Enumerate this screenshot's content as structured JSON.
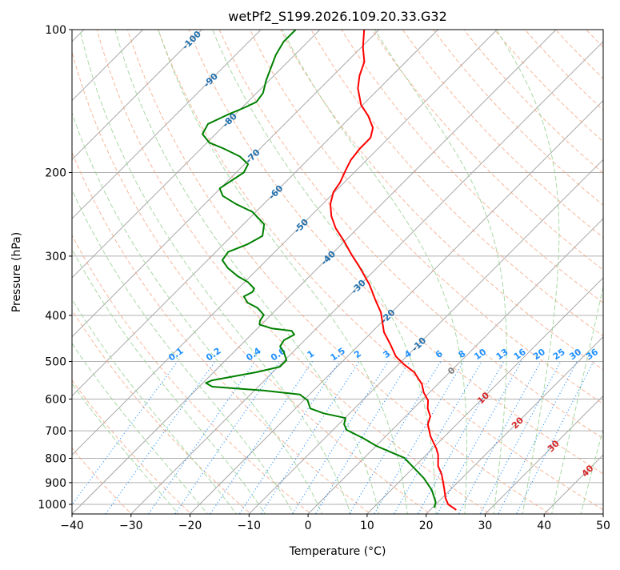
{
  "chart_data": {
    "type": "line",
    "subtype": "skew-t log-p",
    "title": "wetPf2_S199.2026.109.20.33.G32",
    "xlabel": "Temperature (°C)",
    "ylabel": "Pressure (hPa)",
    "xlim": [
      -40,
      50
    ],
    "ylim": [
      1050,
      100
    ],
    "x_ticks": [
      "−40",
      "−30",
      "−20",
      "−10",
      "0",
      "10",
      "20",
      "30",
      "40",
      "50"
    ],
    "y_ticks": [
      "100",
      "200",
      "300",
      "400",
      "500",
      "600",
      "700",
      "800",
      "900",
      "1000"
    ],
    "grid": true,
    "isotherm_labels": [
      "-100",
      "-90",
      "-80",
      "-70",
      "-60",
      "-50",
      "-40",
      "-30",
      "-20",
      "-10",
      "0",
      "10",
      "20",
      "30",
      "40"
    ],
    "mixing_ratio_labels": [
      "0.1",
      "0.2",
      "0.4",
      "0.6",
      "1",
      "1.5",
      "2",
      "3",
      "4",
      "6",
      "8",
      "10",
      "13",
      "16",
      "20",
      "25",
      "30",
      "36"
    ],
    "colors": {
      "temperature": "#ff0000",
      "dewpoint": "#008000",
      "isotherm": "#a0a0a0",
      "dry_adiabat": "#f4a582",
      "moist_adiabat": "#9fd49a",
      "mixing_ratio": "#1e90ff",
      "label_cold": "#1f6fad",
      "label_zero": "#808080",
      "label_warm": "#d62728"
    },
    "series": [
      {
        "name": "temperature",
        "pressure": [
          100,
          109,
          117,
          125,
          133,
          144,
          152,
          161,
          169,
          178,
          188,
          197,
          210,
          220,
          233,
          247,
          262,
          278,
          298,
          318,
          344,
          372,
          394,
          414,
          434,
          460,
          488,
          507,
          527,
          558,
          581,
          604,
          628,
          653,
          678,
          719,
          762,
          786,
          830,
          866,
          925,
          970,
          1000,
          1027
        ],
        "temperature": [
          -72.5,
          -69.7,
          -67.0,
          -65.5,
          -63.6,
          -60.3,
          -57.2,
          -54.4,
          -53.1,
          -53.1,
          -52.7,
          -51.9,
          -50.7,
          -50.2,
          -48.7,
          -46.5,
          -43.7,
          -40.3,
          -36.5,
          -32.8,
          -28.5,
          -24.7,
          -21.8,
          -19.8,
          -17.9,
          -14.8,
          -11.8,
          -9.1,
          -6.0,
          -2.7,
          -1.0,
          1.1,
          2.4,
          4.2,
          5.1,
          7.6,
          10.6,
          12.0,
          13.9,
          16.0,
          18.7,
          20.6,
          22.1,
          24.4
        ]
      },
      {
        "name": "dewpoint",
        "pressure": [
          100,
          106,
          113,
          120,
          128,
          136,
          142,
          146,
          151,
          158,
          166,
          173,
          178,
          185,
          192,
          200,
          208,
          216,
          224,
          233,
          242,
          257,
          272,
          283,
          294,
          306,
          318,
          331,
          340,
          351,
          357,
          365,
          376,
          386,
          399,
          410,
          418,
          426,
          431,
          439,
          451,
          465,
          478,
          497,
          513,
          527,
          548,
          555,
          565,
          576,
          587,
          604,
          628,
          643,
          658,
          678,
          697,
          727,
          753,
          798,
          840,
          880,
          933,
          989,
          1016
        ],
        "temperature": [
          -84.1,
          -84.1,
          -83.2,
          -81.9,
          -80.5,
          -78.9,
          -78.5,
          -79.6,
          -81.2,
          -83.0,
          -82.2,
          -79.6,
          -76.2,
          -72.1,
          -69.4,
          -68.7,
          -69.4,
          -70.1,
          -68.3,
          -64.7,
          -60.6,
          -56.5,
          -54.8,
          -55.9,
          -57.9,
          -57.5,
          -55.2,
          -52.1,
          -49.5,
          -47.3,
          -47.0,
          -47.7,
          -46.0,
          -43.4,
          -41.2,
          -40.9,
          -40.3,
          -37.6,
          -33.8,
          -32.7,
          -33.5,
          -33.1,
          -31.5,
          -29.7,
          -29.7,
          -32.8,
          -38.9,
          -39.5,
          -37.8,
          -28.3,
          -21.6,
          -19.3,
          -17.5,
          -14.4,
          -9.9,
          -9.1,
          -7.7,
          -3.3,
          0.0,
          6.8,
          10.3,
          13.5,
          16.9,
          19.6,
          20.3
        ]
      }
    ]
  }
}
